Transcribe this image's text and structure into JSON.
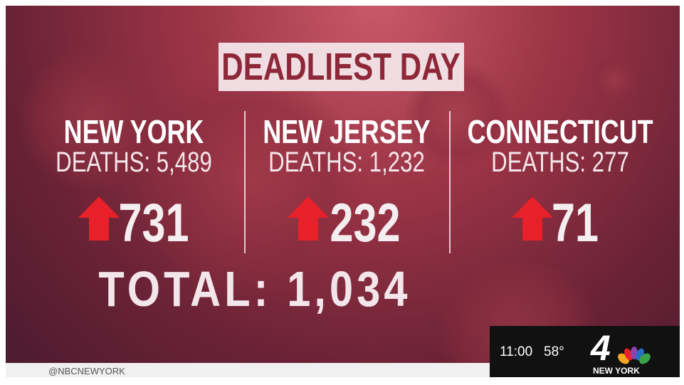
{
  "graphic": {
    "title": "DEADLIEST DAY",
    "columns": [
      {
        "state": "NEW YORK",
        "deaths": "DEATHS: 5,489",
        "increase": "731"
      },
      {
        "state": "NEW JERSEY",
        "deaths": "DEATHS: 1,232",
        "increase": "232"
      },
      {
        "state": "CONNECTICUT",
        "deaths": "DEATHS: 277",
        "increase": "71"
      }
    ],
    "total": "TOTAL: 1,034"
  },
  "ticker": {
    "social": "@NBCNEWYORK"
  },
  "bug": {
    "time": "11:00",
    "temperature": "58°",
    "channel": "4",
    "station": "NEW YORK"
  }
}
